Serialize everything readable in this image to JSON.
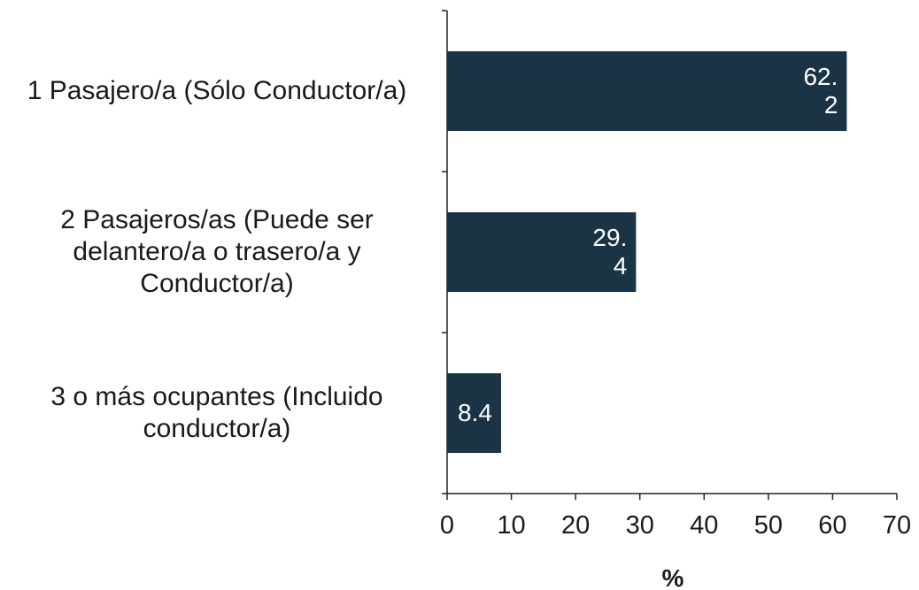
{
  "chart_data": {
    "type": "bar",
    "orientation": "horizontal",
    "categories": [
      "1 Pasajero/a (Sólo Conductor/a)",
      "2 Pasajeros/as (Puede ser delantero/a o trasero/a y Conductor/a)",
      "3 o más ocupantes (Incluido conductor/a)"
    ],
    "values": [
      62.2,
      29.4,
      8.4
    ],
    "color": "#1b3445",
    "xlim": [
      0,
      70
    ],
    "xticks": [
      0,
      10,
      20,
      30,
      40,
      50,
      60,
      70
    ],
    "xlabel": "%",
    "grid": false
  }
}
